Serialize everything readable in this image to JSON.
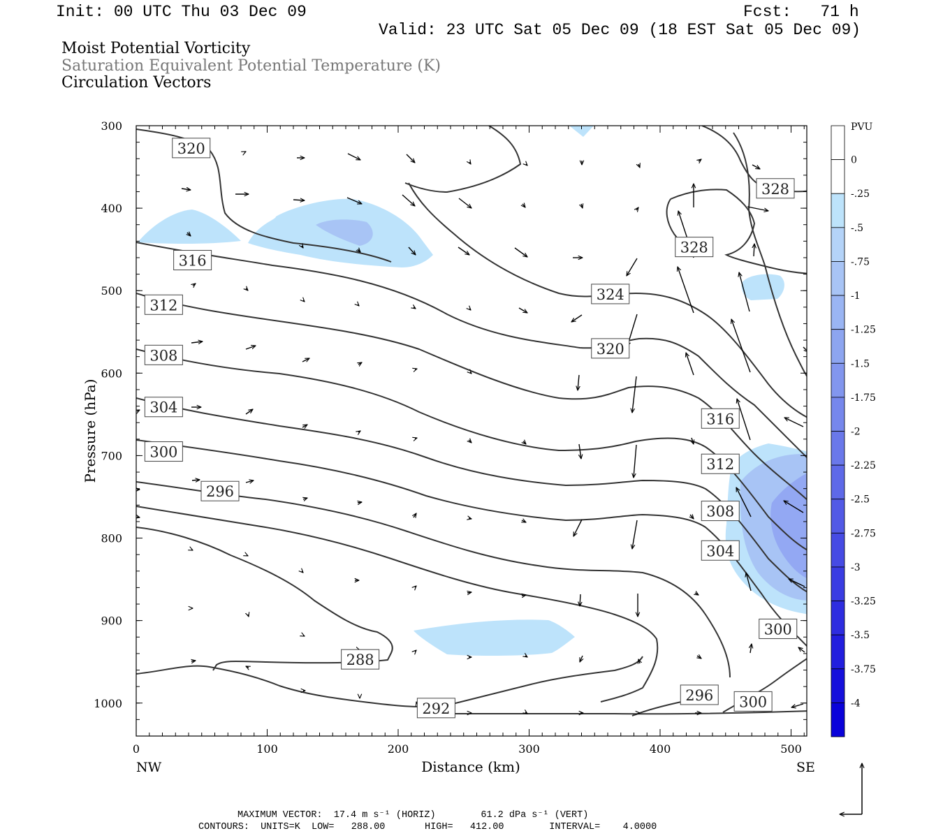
{
  "header": {
    "init": "Init: 00 UTC Thu 03 Dec 09",
    "fcst": "Fcst:   71 h",
    "valid": "Valid: 23 UTC Sat 05 Dec 09 (18 EST Sat 05 Dec 09)",
    "field1": "Moist Potential Vorticity",
    "field2": "Saturation Equivalent Potential Temperature (K)",
    "field3": "Circulation Vectors"
  },
  "colors": {
    "contour": "#333333",
    "fill_light": "#bde3fb",
    "fill_medium": "#a8c4f5",
    "fill_strong": "#93a8f3"
  },
  "chart_data": {
    "type": "cross-section",
    "xlabel": "Distance (km)",
    "ylabel": "Pressure (hPa)",
    "xlim": [
      0,
      512
    ],
    "ylim": [
      1040,
      300
    ],
    "x_ticks": [
      "0",
      "100",
      "200",
      "300",
      "400",
      "500"
    ],
    "y_ticks": [
      "300",
      "400",
      "500",
      "600",
      "700",
      "800",
      "900",
      "1000"
    ],
    "left_end_label": "NW",
    "right_end_label": "SE",
    "contour_labels": [
      {
        "text": "320",
        "x": 42,
        "p": 327
      },
      {
        "text": "316",
        "x": 43,
        "p": 463
      },
      {
        "text": "312",
        "x": 21,
        "p": 517
      },
      {
        "text": "308",
        "x": 21,
        "p": 578
      },
      {
        "text": "304",
        "x": 21,
        "p": 641
      },
      {
        "text": "300",
        "x": 21,
        "p": 695
      },
      {
        "text": "296",
        "x": 64,
        "p": 743
      },
      {
        "text": "288",
        "x": 171,
        "p": 947
      },
      {
        "text": "292",
        "x": 229,
        "p": 1006
      },
      {
        "text": "324",
        "x": 362,
        "p": 504
      },
      {
        "text": "320",
        "x": 362,
        "p": 570
      },
      {
        "text": "328",
        "x": 426,
        "p": 447
      },
      {
        "text": "316",
        "x": 446,
        "p": 655
      },
      {
        "text": "312",
        "x": 446,
        "p": 710
      },
      {
        "text": "308",
        "x": 446,
        "p": 767
      },
      {
        "text": "304",
        "x": 446,
        "p": 815
      },
      {
        "text": "300",
        "x": 490,
        "p": 910
      },
      {
        "text": "296",
        "x": 430,
        "p": 990
      },
      {
        "text": "300",
        "x": 471,
        "p": 998
      },
      {
        "text": "328",
        "x": 488,
        "p": 376
      }
    ],
    "colorbar": {
      "title": "PVU",
      "labels": [
        "0",
        "-.25",
        "-.5",
        "-.75",
        "-1",
        "-1.25",
        "-1.5",
        "-1.75",
        "-2",
        "-2.25",
        "-2.5",
        "-2.75",
        "-3",
        "-3.25",
        "-3.5",
        "-3.75",
        "-4"
      ]
    }
  },
  "footer": {
    "max_vector": "MAXIMUM VECTOR:  17.4 m s⁻¹ (HORIZ)        61.2 dPa s⁻¹ (VERT)",
    "contours": "CONTOURS:  UNITS=K  LOW=   288.00       HIGH=   412.00        INTERVAL=    4.0000"
  }
}
